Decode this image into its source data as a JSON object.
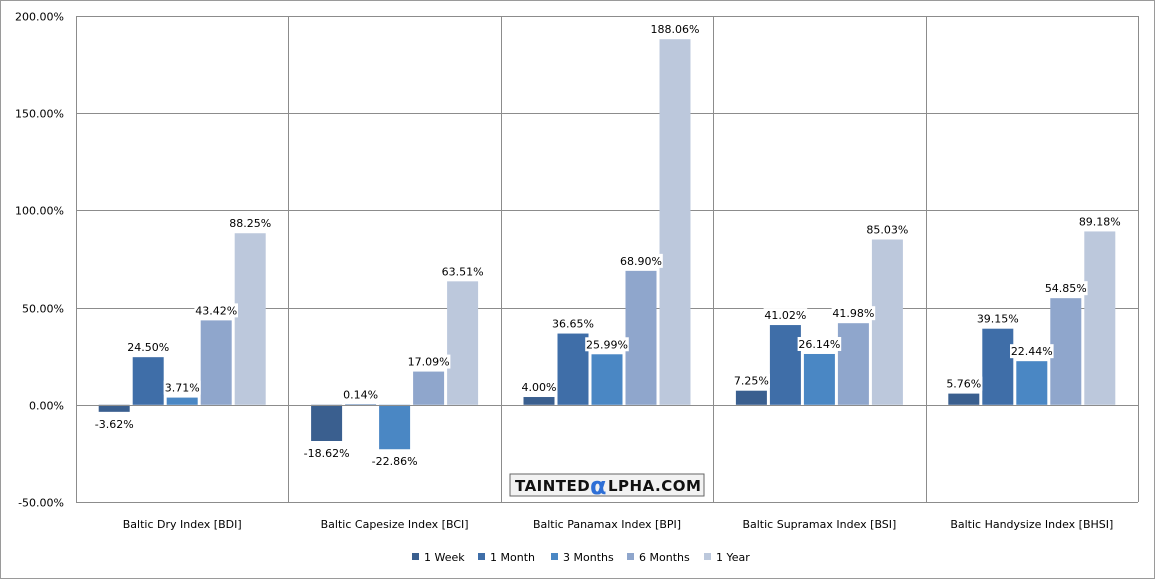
{
  "chart_data": {
    "type": "bar",
    "categories": [
      "Baltic Dry Index [BDI]",
      "Baltic Capesize Index [BCI]",
      "Baltic Panamax Index [BPI]",
      "Baltic Supramax Index [BSI]",
      "Baltic Handysize Index [BHSI]"
    ],
    "series": [
      {
        "name": "1 Week",
        "color": "#3a5f8f",
        "values": [
          -3.62,
          -18.62,
          4.0,
          7.25,
          5.76
        ],
        "labels": [
          "-3.62%",
          "-18.62%",
          "4.00%",
          "7.25%",
          "5.76%"
        ]
      },
      {
        "name": "1 Month",
        "color": "#3f6ea8",
        "values": [
          24.5,
          0.14,
          36.65,
          41.02,
          39.15
        ],
        "labels": [
          "24.50%",
          "0.14%",
          "36.65%",
          "41.02%",
          "39.15%"
        ]
      },
      {
        "name": "3 Months",
        "color": "#4a87c4",
        "values": [
          3.71,
          -22.86,
          25.99,
          26.14,
          22.44
        ],
        "labels": [
          "3.71%",
          "-22.86%",
          "25.99%",
          "26.14%",
          "22.44%"
        ]
      },
      {
        "name": "6 Months",
        "color": "#8fa6cc",
        "values": [
          43.42,
          17.09,
          68.9,
          41.98,
          54.85
        ],
        "labels": [
          "43.42%",
          "17.09%",
          "68.90%",
          "41.98%",
          "54.85%"
        ]
      },
      {
        "name": "1 Year",
        "color": "#bcc8dc",
        "values": [
          88.25,
          63.51,
          188.06,
          85.03,
          89.18
        ],
        "labels": [
          "88.25%",
          "63.51%",
          "188.06%",
          "85.03%",
          "89.18%"
        ]
      }
    ],
    "yticks": [
      "200.00%",
      "150.00%",
      "100.00%",
      "50.00%",
      "0.00%",
      "-50.00%"
    ],
    "ytick_values": [
      200,
      150,
      100,
      50,
      0,
      -50
    ],
    "ylim": [
      -50,
      200
    ],
    "grid": true,
    "legend_position": "bottom"
  },
  "watermark": {
    "text_left": "TAINTED",
    "text_alpha": "α",
    "text_right": "LPHA.COM"
  }
}
